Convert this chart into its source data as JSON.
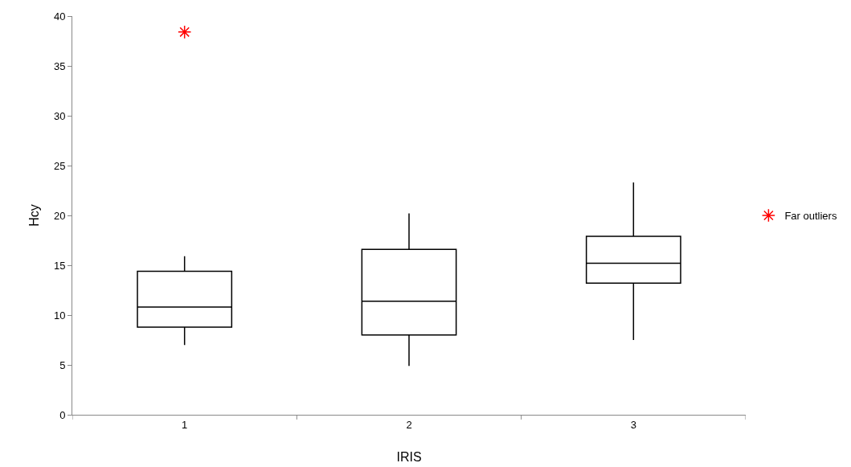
{
  "chart_data": {
    "type": "box",
    "xlabel": "IRIS",
    "ylabel": "Hcy",
    "categories": [
      "1",
      "2",
      "3"
    ],
    "boxes": [
      {
        "low": 7.0,
        "q1": 8.8,
        "median": 10.8,
        "q3": 14.4,
        "high": 15.9
      },
      {
        "low": 4.9,
        "q1": 8.0,
        "median": 11.4,
        "q3": 16.6,
        "high": 20.2
      },
      {
        "low": 7.5,
        "q1": 13.2,
        "median": 15.2,
        "q3": 17.9,
        "high": 23.3
      }
    ],
    "color": "#000000",
    "series": [
      {
        "type": "scatter",
        "name": "Far outliers",
        "color": "#ff0000",
        "x": [
          "1"
        ],
        "values": [
          38.4
        ],
        "marker": "cross"
      }
    ],
    "ylim": [
      0,
      40
    ],
    "yticks": [
      0,
      5,
      10,
      15,
      20,
      25,
      30,
      35,
      40
    ],
    "grid": false,
    "legend": "right"
  }
}
